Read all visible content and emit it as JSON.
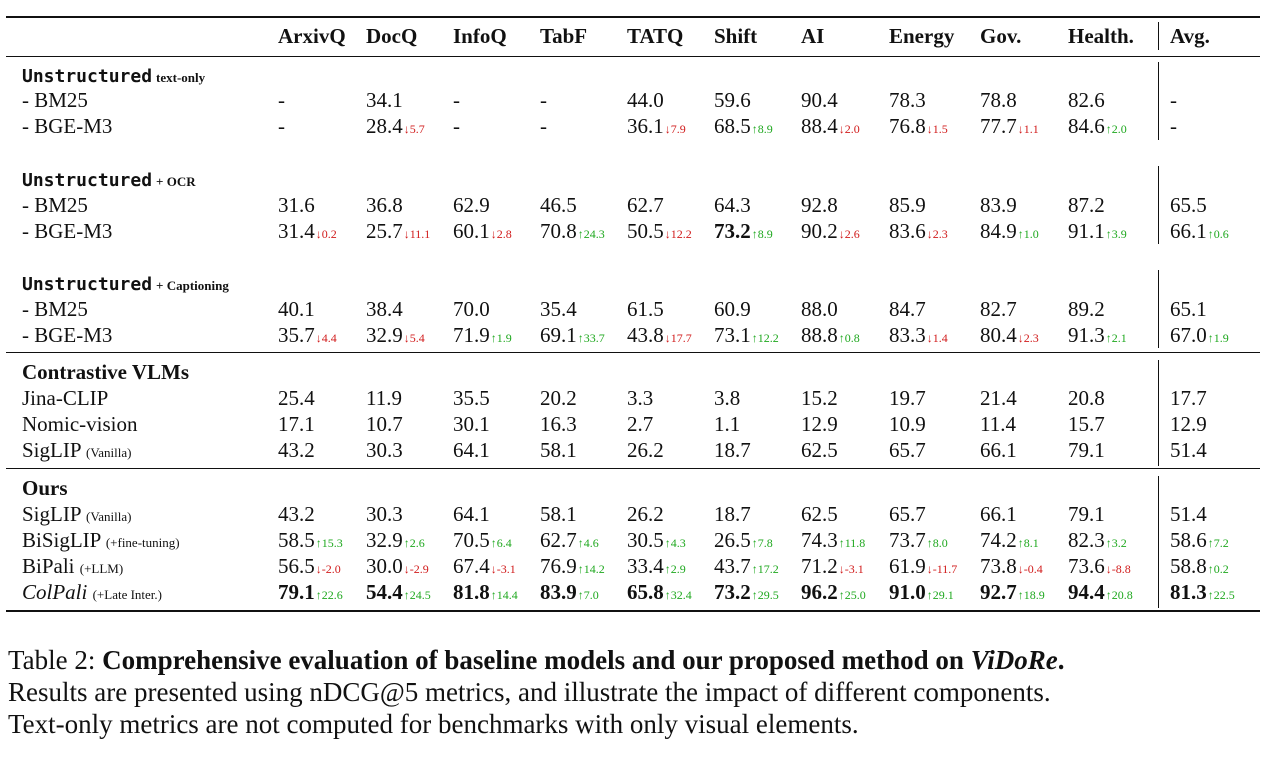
{
  "columns": [
    "ArxivQ",
    "DocQ",
    "InfoQ",
    "TabF",
    "TATQ",
    "Shift",
    "AI",
    "Energy",
    "Gov.",
    "Health.",
    "Avg."
  ],
  "sections": [
    {
      "type": "group",
      "title": "Unstructured",
      "suffix": "text-only",
      "mono": true,
      "rows": [
        {
          "label": "- BM25",
          "note": "",
          "italic": false,
          "cells": [
            {
              "v": "-"
            },
            {
              "v": "34.1"
            },
            {
              "v": "-"
            },
            {
              "v": "-"
            },
            {
              "v": "44.0"
            },
            {
              "v": "59.6"
            },
            {
              "v": "90.4"
            },
            {
              "v": "78.3"
            },
            {
              "v": "78.8"
            },
            {
              "v": "82.6"
            },
            {
              "v": "-"
            }
          ]
        },
        {
          "label": "- BGE-M3",
          "note": "",
          "italic": false,
          "cells": [
            {
              "v": "-"
            },
            {
              "v": "28.4",
              "d": "↓5.7",
              "dir": "down"
            },
            {
              "v": "-"
            },
            {
              "v": "-"
            },
            {
              "v": "36.1",
              "d": "↓7.9",
              "dir": "down"
            },
            {
              "v": "68.5",
              "d": "↑8.9",
              "dir": "up"
            },
            {
              "v": "88.4",
              "d": "↓2.0",
              "dir": "down"
            },
            {
              "v": "76.8",
              "d": "↓1.5",
              "dir": "down"
            },
            {
              "v": "77.7",
              "d": "↓1.1",
              "dir": "down"
            },
            {
              "v": "84.6",
              "d": "↑2.0",
              "dir": "up"
            },
            {
              "v": "-"
            }
          ]
        }
      ]
    },
    {
      "type": "group",
      "title": "Unstructured",
      "suffix": "+ OCR",
      "mono": true,
      "rows": [
        {
          "label": "- BM25",
          "note": "",
          "italic": false,
          "cells": [
            {
              "v": "31.6"
            },
            {
              "v": "36.8"
            },
            {
              "v": "62.9"
            },
            {
              "v": "46.5"
            },
            {
              "v": "62.7"
            },
            {
              "v": "64.3"
            },
            {
              "v": "92.8"
            },
            {
              "v": "85.9"
            },
            {
              "v": "83.9"
            },
            {
              "v": "87.2"
            },
            {
              "v": "65.5"
            }
          ]
        },
        {
          "label": "- BGE-M3",
          "note": "",
          "italic": false,
          "cells": [
            {
              "v": "31.4",
              "d": "↓0.2",
              "dir": "down"
            },
            {
              "v": "25.7",
              "d": "↓11.1",
              "dir": "down"
            },
            {
              "v": "60.1",
              "d": "↓2.8",
              "dir": "down"
            },
            {
              "v": "70.8",
              "d": "↑24.3",
              "dir": "up"
            },
            {
              "v": "50.5",
              "d": "↓12.2",
              "dir": "down"
            },
            {
              "v": "73.2",
              "d": "↑8.9",
              "dir": "up",
              "b": true
            },
            {
              "v": "90.2",
              "d": "↓2.6",
              "dir": "down"
            },
            {
              "v": "83.6",
              "d": "↓2.3",
              "dir": "down"
            },
            {
              "v": "84.9",
              "d": "↑1.0",
              "dir": "up"
            },
            {
              "v": "91.1",
              "d": "↑3.9",
              "dir": "up"
            },
            {
              "v": "66.1",
              "d": "↑0.6",
              "dir": "up"
            }
          ]
        }
      ]
    },
    {
      "type": "group",
      "title": "Unstructured",
      "suffix": "+ Captioning",
      "mono": true,
      "rows": [
        {
          "label": "- BM25",
          "note": "",
          "italic": false,
          "cells": [
            {
              "v": "40.1"
            },
            {
              "v": "38.4"
            },
            {
              "v": "70.0"
            },
            {
              "v": "35.4"
            },
            {
              "v": "61.5"
            },
            {
              "v": "60.9"
            },
            {
              "v": "88.0"
            },
            {
              "v": "84.7"
            },
            {
              "v": "82.7"
            },
            {
              "v": "89.2"
            },
            {
              "v": "65.1"
            }
          ]
        },
        {
          "label": "- BGE-M3",
          "note": "",
          "italic": false,
          "cells": [
            {
              "v": "35.7",
              "d": "↓4.4",
              "dir": "down"
            },
            {
              "v": "32.9",
              "d": "↓5.4",
              "dir": "down"
            },
            {
              "v": "71.9",
              "d": "↑1.9",
              "dir": "up"
            },
            {
              "v": "69.1",
              "d": "↑33.7",
              "dir": "up"
            },
            {
              "v": "43.8",
              "d": "↓17.7",
              "dir": "down"
            },
            {
              "v": "73.1",
              "d": "↑12.2",
              "dir": "up"
            },
            {
              "v": "88.8",
              "d": "↑0.8",
              "dir": "up"
            },
            {
              "v": "83.3",
              "d": "↓1.4",
              "dir": "down"
            },
            {
              "v": "80.4",
              "d": "↓2.3",
              "dir": "down"
            },
            {
              "v": "91.3",
              "d": "↑2.1",
              "dir": "up"
            },
            {
              "v": "67.0",
              "d": "↑1.9",
              "dir": "up"
            }
          ]
        }
      ]
    },
    {
      "type": "group",
      "title": "Contrastive VLMs",
      "suffix": "",
      "mono": false,
      "rows": [
        {
          "label": "Jina-CLIP",
          "note": "",
          "italic": false,
          "cells": [
            {
              "v": "25.4"
            },
            {
              "v": "11.9"
            },
            {
              "v": "35.5"
            },
            {
              "v": "20.2"
            },
            {
              "v": "3.3"
            },
            {
              "v": "3.8"
            },
            {
              "v": "15.2"
            },
            {
              "v": "19.7"
            },
            {
              "v": "21.4"
            },
            {
              "v": "20.8"
            },
            {
              "v": "17.7"
            }
          ]
        },
        {
          "label": "Nomic-vision",
          "note": "",
          "italic": false,
          "cells": [
            {
              "v": "17.1"
            },
            {
              "v": "10.7"
            },
            {
              "v": "30.1"
            },
            {
              "v": "16.3"
            },
            {
              "v": "2.7"
            },
            {
              "v": "1.1"
            },
            {
              "v": "12.9"
            },
            {
              "v": "10.9"
            },
            {
              "v": "11.4"
            },
            {
              "v": "15.7"
            },
            {
              "v": "12.9"
            }
          ]
        },
        {
          "label": "SigLIP",
          "note": "(Vanilla)",
          "italic": false,
          "cells": [
            {
              "v": "43.2"
            },
            {
              "v": "30.3"
            },
            {
              "v": "64.1"
            },
            {
              "v": "58.1"
            },
            {
              "v": "26.2"
            },
            {
              "v": "18.7"
            },
            {
              "v": "62.5"
            },
            {
              "v": "65.7"
            },
            {
              "v": "66.1"
            },
            {
              "v": "79.1"
            },
            {
              "v": "51.4"
            }
          ]
        }
      ]
    },
    {
      "type": "group",
      "title": "Ours",
      "suffix": "",
      "mono": false,
      "rows": [
        {
          "label": "SigLIP",
          "note": "(Vanilla)",
          "italic": false,
          "cells": [
            {
              "v": "43.2"
            },
            {
              "v": "30.3"
            },
            {
              "v": "64.1"
            },
            {
              "v": "58.1"
            },
            {
              "v": "26.2"
            },
            {
              "v": "18.7"
            },
            {
              "v": "62.5"
            },
            {
              "v": "65.7"
            },
            {
              "v": "66.1"
            },
            {
              "v": "79.1"
            },
            {
              "v": "51.4"
            }
          ]
        },
        {
          "label": "BiSigLIP",
          "note": "(+fine-tuning)",
          "italic": false,
          "cells": [
            {
              "v": "58.5",
              "d": "↑15.3",
              "dir": "up"
            },
            {
              "v": "32.9",
              "d": "↑2.6",
              "dir": "up"
            },
            {
              "v": "70.5",
              "d": "↑6.4",
              "dir": "up"
            },
            {
              "v": "62.7",
              "d": "↑4.6",
              "dir": "up"
            },
            {
              "v": "30.5",
              "d": "↑4.3",
              "dir": "up"
            },
            {
              "v": "26.5",
              "d": "↑7.8",
              "dir": "up"
            },
            {
              "v": "74.3",
              "d": "↑11.8",
              "dir": "up"
            },
            {
              "v": "73.7",
              "d": "↑8.0",
              "dir": "up"
            },
            {
              "v": "74.2",
              "d": "↑8.1",
              "dir": "up"
            },
            {
              "v": "82.3",
              "d": "↑3.2",
              "dir": "up"
            },
            {
              "v": "58.6",
              "d": "↑7.2",
              "dir": "up"
            }
          ]
        },
        {
          "label": "BiPali",
          "note": "(+LLM)",
          "italic": false,
          "cells": [
            {
              "v": "56.5",
              "d": "↓-2.0",
              "dir": "down"
            },
            {
              "v": "30.0",
              "d": "↓-2.9",
              "dir": "down"
            },
            {
              "v": "67.4",
              "d": "↓-3.1",
              "dir": "down"
            },
            {
              "v": "76.9",
              "d": "↑14.2",
              "dir": "up"
            },
            {
              "v": "33.4",
              "d": "↑2.9",
              "dir": "up"
            },
            {
              "v": "43.7",
              "d": "↑17.2",
              "dir": "up"
            },
            {
              "v": "71.2",
              "d": "↓-3.1",
              "dir": "down"
            },
            {
              "v": "61.9",
              "d": "↓-11.7",
              "dir": "down"
            },
            {
              "v": "73.8",
              "d": "↓-0.4",
              "dir": "down"
            },
            {
              "v": "73.6",
              "d": "↓-8.8",
              "dir": "down"
            },
            {
              "v": "58.8",
              "d": "↑0.2",
              "dir": "up"
            }
          ]
        },
        {
          "label": "ColPali",
          "note": "(+Late Inter.)",
          "italic": true,
          "cells": [
            {
              "v": "79.1",
              "d": "↑22.6",
              "dir": "up",
              "b": true
            },
            {
              "v": "54.4",
              "d": "↑24.5",
              "dir": "up",
              "b": true
            },
            {
              "v": "81.8",
              "d": "↑14.4",
              "dir": "up",
              "b": true
            },
            {
              "v": "83.9",
              "d": "↑7.0",
              "dir": "up",
              "b": true
            },
            {
              "v": "65.8",
              "d": "↑32.4",
              "dir": "up",
              "b": true
            },
            {
              "v": "73.2",
              "d": "↑29.5",
              "dir": "up",
              "b": true
            },
            {
              "v": "96.2",
              "d": "↑25.0",
              "dir": "up",
              "b": true
            },
            {
              "v": "91.0",
              "d": "↑29.1",
              "dir": "up",
              "b": true
            },
            {
              "v": "92.7",
              "d": "↑18.9",
              "dir": "up",
              "b": true
            },
            {
              "v": "94.4",
              "d": "↑20.8",
              "dir": "up",
              "b": true
            },
            {
              "v": "81.3",
              "d": "↑22.5",
              "dir": "up",
              "b": true
            }
          ]
        }
      ]
    }
  ],
  "caption": {
    "label": "Table 2:",
    "title_plain": "Comprehensive evaluation of baseline models and our proposed method on",
    "title_italic": "ViDoRe",
    "title_end": ".",
    "line2": "Results are presented using nDCG@5 metrics, and illustrate the impact of different components.",
    "line3": "Text-only metrics are not computed for benchmarks with only visual elements."
  },
  "colors": {
    "up": "#1fa81f",
    "down": "#d11b1b"
  }
}
